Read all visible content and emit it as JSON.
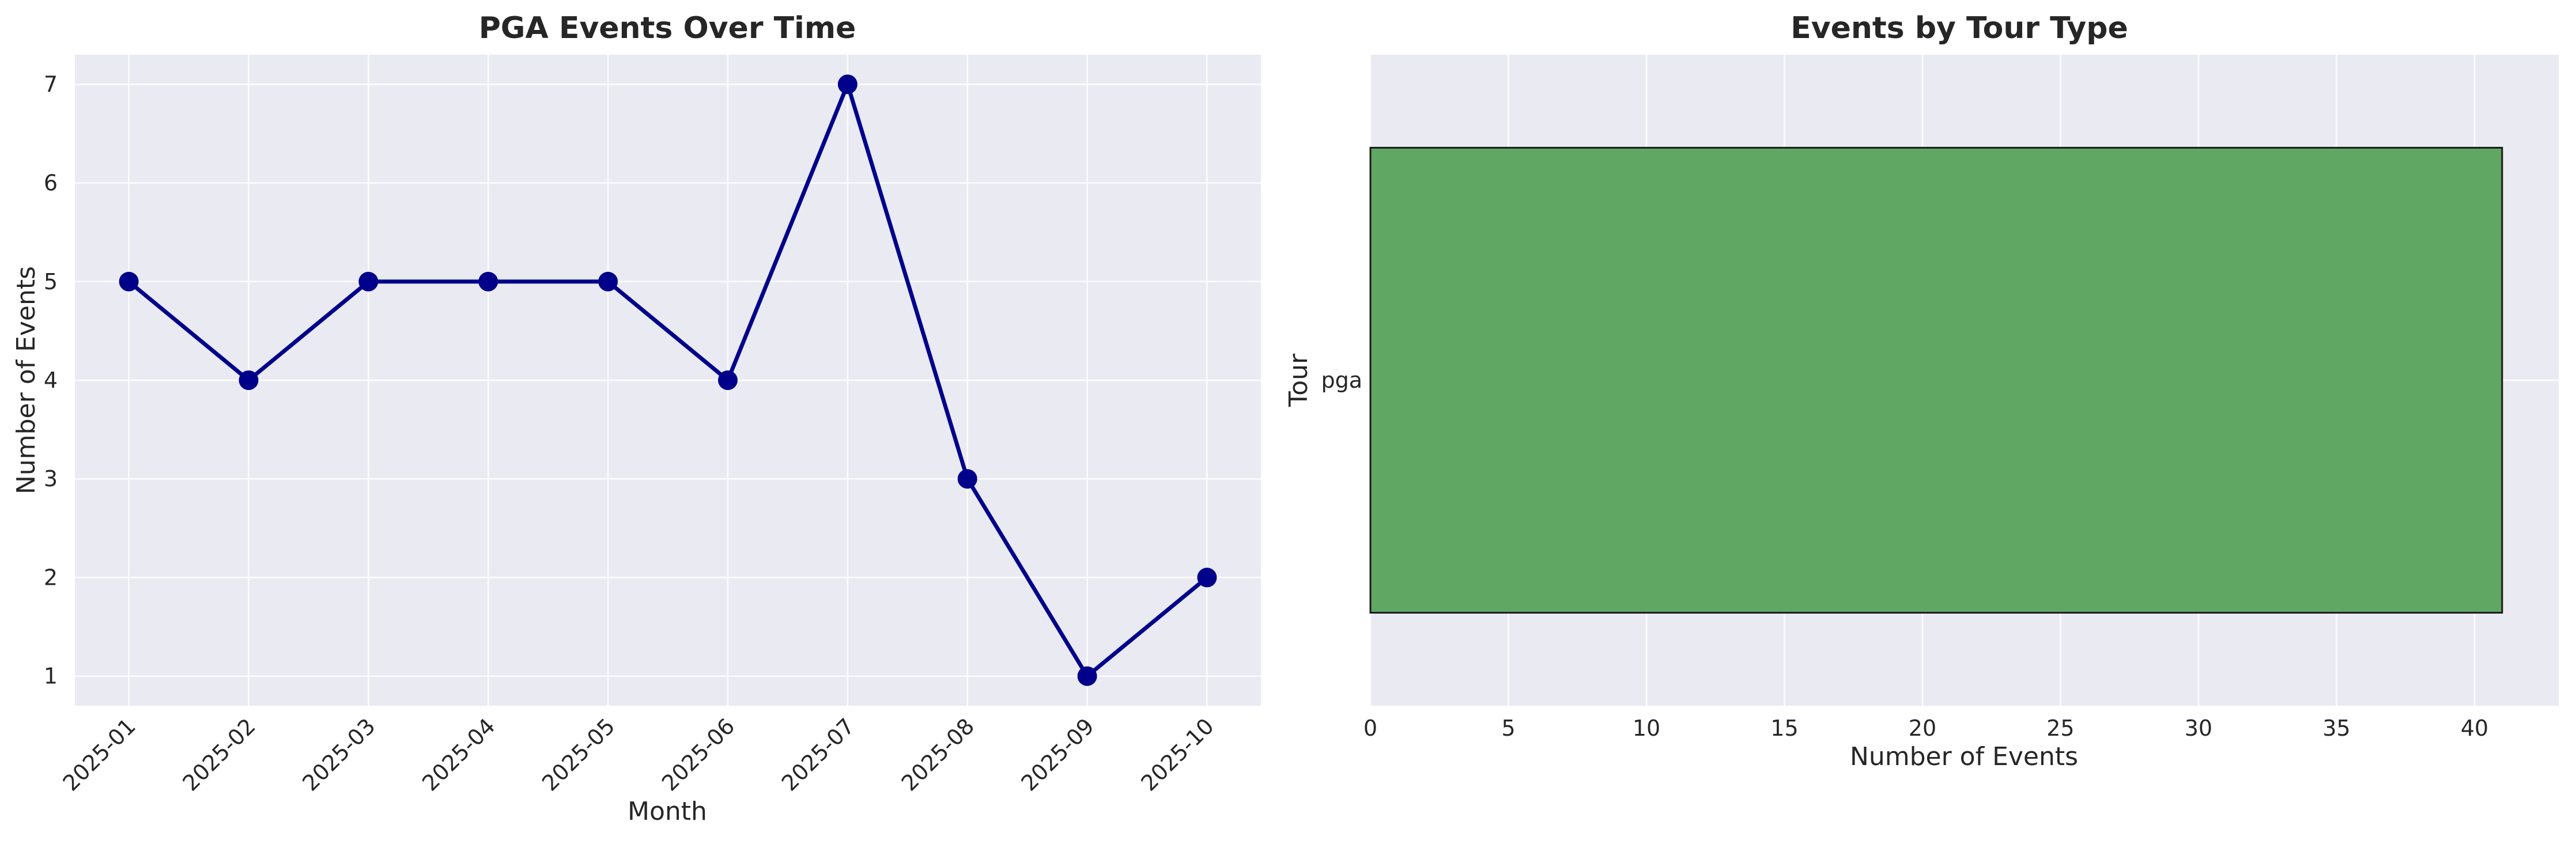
{
  "colors": {
    "line": "#00008b",
    "bar_fill": "#5fa762",
    "bar_edge": "#1a1a1a",
    "plot_bg": "#eaeaf2"
  },
  "chart_data": [
    {
      "type": "line",
      "title": "PGA Events Over Time",
      "xlabel": "Month",
      "ylabel": "Number of Events",
      "x": [
        "2025-01",
        "2025-02",
        "2025-03",
        "2025-04",
        "2025-05",
        "2025-06",
        "2025-07",
        "2025-08",
        "2025-09",
        "2025-10"
      ],
      "values": [
        5,
        4,
        5,
        5,
        5,
        4,
        7,
        3,
        1,
        2
      ],
      "yticks": [
        1,
        2,
        3,
        4,
        5,
        6,
        7
      ],
      "ylim": [
        0.7,
        7.3
      ],
      "marker": "circle",
      "grid": true,
      "legend": "none"
    },
    {
      "type": "bar",
      "orientation": "horizontal",
      "title": "Events by Tour Type",
      "xlabel": "Number of Events",
      "ylabel": "Tour",
      "categories": [
        "pga"
      ],
      "values": [
        41
      ],
      "xticks": [
        0,
        5,
        10,
        15,
        20,
        25,
        30,
        35,
        40
      ],
      "xlim": [
        0,
        43.05
      ],
      "grid": true,
      "legend": "none"
    }
  ]
}
